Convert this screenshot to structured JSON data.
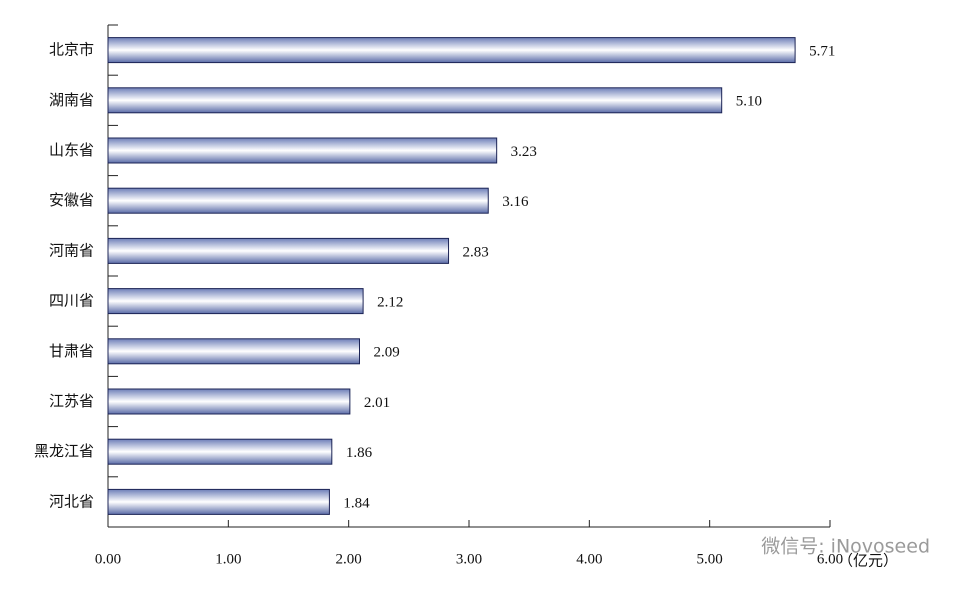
{
  "chart_data": {
    "type": "bar",
    "orientation": "horizontal",
    "categories": [
      "北京市",
      "湖南省",
      "山东省",
      "安徽省",
      "河南省",
      "四川省",
      "甘肃省",
      "江苏省",
      "黑龙江省",
      "河北省"
    ],
    "values": [
      5.71,
      5.1,
      3.23,
      3.16,
      2.83,
      2.12,
      2.09,
      2.01,
      1.86,
      1.84
    ],
    "value_labels": [
      "5.71",
      "5.10",
      "3.23",
      "3.16",
      "2.83",
      "2.12",
      "2.09",
      "2.01",
      "1.86",
      "1.84"
    ],
    "color": "#7b8bc2",
    "xlabel": "（亿元）",
    "xlim": [
      0,
      6
    ],
    "xticks": [
      {
        "value": 0,
        "label": "0.00"
      },
      {
        "value": 1,
        "label": "1.00"
      },
      {
        "value": 2,
        "label": "2.00"
      },
      {
        "value": 3,
        "label": "3.00"
      },
      {
        "value": 4,
        "label": "4.00"
      },
      {
        "value": 5,
        "label": "5.00"
      },
      {
        "value": 6,
        "label": "6.00"
      }
    ],
    "grid": false,
    "annotations": [
      "微信号: iNovoseed"
    ]
  }
}
